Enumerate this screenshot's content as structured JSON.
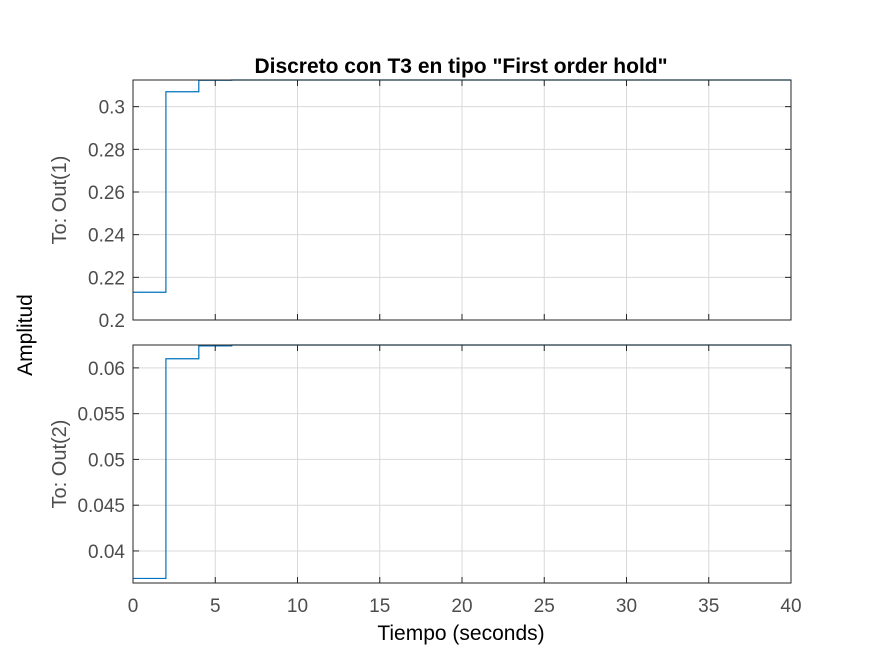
{
  "chart_data": {
    "type": "line",
    "title": "Discreto con T3 en tipo \"First order hold\"",
    "xlabel": "Tiempo (seconds)",
    "ylabel": "Amplitud",
    "xlim": [
      0,
      40
    ],
    "x_ticks": [
      0,
      5,
      10,
      15,
      20,
      25,
      30,
      35,
      40
    ],
    "grid": true,
    "step_style": "stairs",
    "line_color": "#0072BD",
    "steady_state_line_style": "dotted",
    "subplots": [
      {
        "ylabel": "To: Out(1)",
        "ylim": [
          0.2,
          0.3125
        ],
        "y_ticks": [
          0.2,
          0.22,
          0.24,
          0.26,
          0.28,
          0.3
        ],
        "y_tick_labels": [
          "0.2",
          "0.22",
          "0.24",
          "0.26",
          "0.28",
          "0.3"
        ],
        "steady_state": 0.3125,
        "series": [
          {
            "x": [
              0,
              2,
              4,
              6,
              8,
              10,
              12,
              14,
              16,
              18,
              20,
              22,
              24,
              26,
              28,
              30,
              32,
              34,
              36,
              38,
              40
            ],
            "y": [
              0.213,
              0.307,
              0.3124,
              0.3125,
              0.3125,
              0.3125,
              0.3125,
              0.3125,
              0.3125,
              0.3125,
              0.3125,
              0.3125,
              0.3125,
              0.3125,
              0.3125,
              0.3125,
              0.3125,
              0.3125,
              0.3125,
              0.3125,
              0.3125
            ]
          }
        ]
      },
      {
        "ylabel": "To: Out(2)",
        "ylim": [
          0.0365,
          0.0625
        ],
        "y_ticks": [
          0.04,
          0.045,
          0.05,
          0.055,
          0.06
        ],
        "y_tick_labels": [
          "0.04",
          "0.045",
          "0.05",
          "0.055",
          "0.06"
        ],
        "steady_state": 0.0625,
        "series": [
          {
            "x": [
              0,
              2,
              4,
              6,
              8,
              10,
              12,
              14,
              16,
              18,
              20,
              22,
              24,
              26,
              28,
              30,
              32,
              34,
              36,
              38,
              40
            ],
            "y": [
              0.037,
              0.061,
              0.0624,
              0.0625,
              0.0625,
              0.0625,
              0.0625,
              0.0625,
              0.0625,
              0.0625,
              0.0625,
              0.0625,
              0.0625,
              0.0625,
              0.0625,
              0.0625,
              0.0625,
              0.0625,
              0.0625,
              0.0625,
              0.0625
            ]
          }
        ]
      }
    ]
  }
}
